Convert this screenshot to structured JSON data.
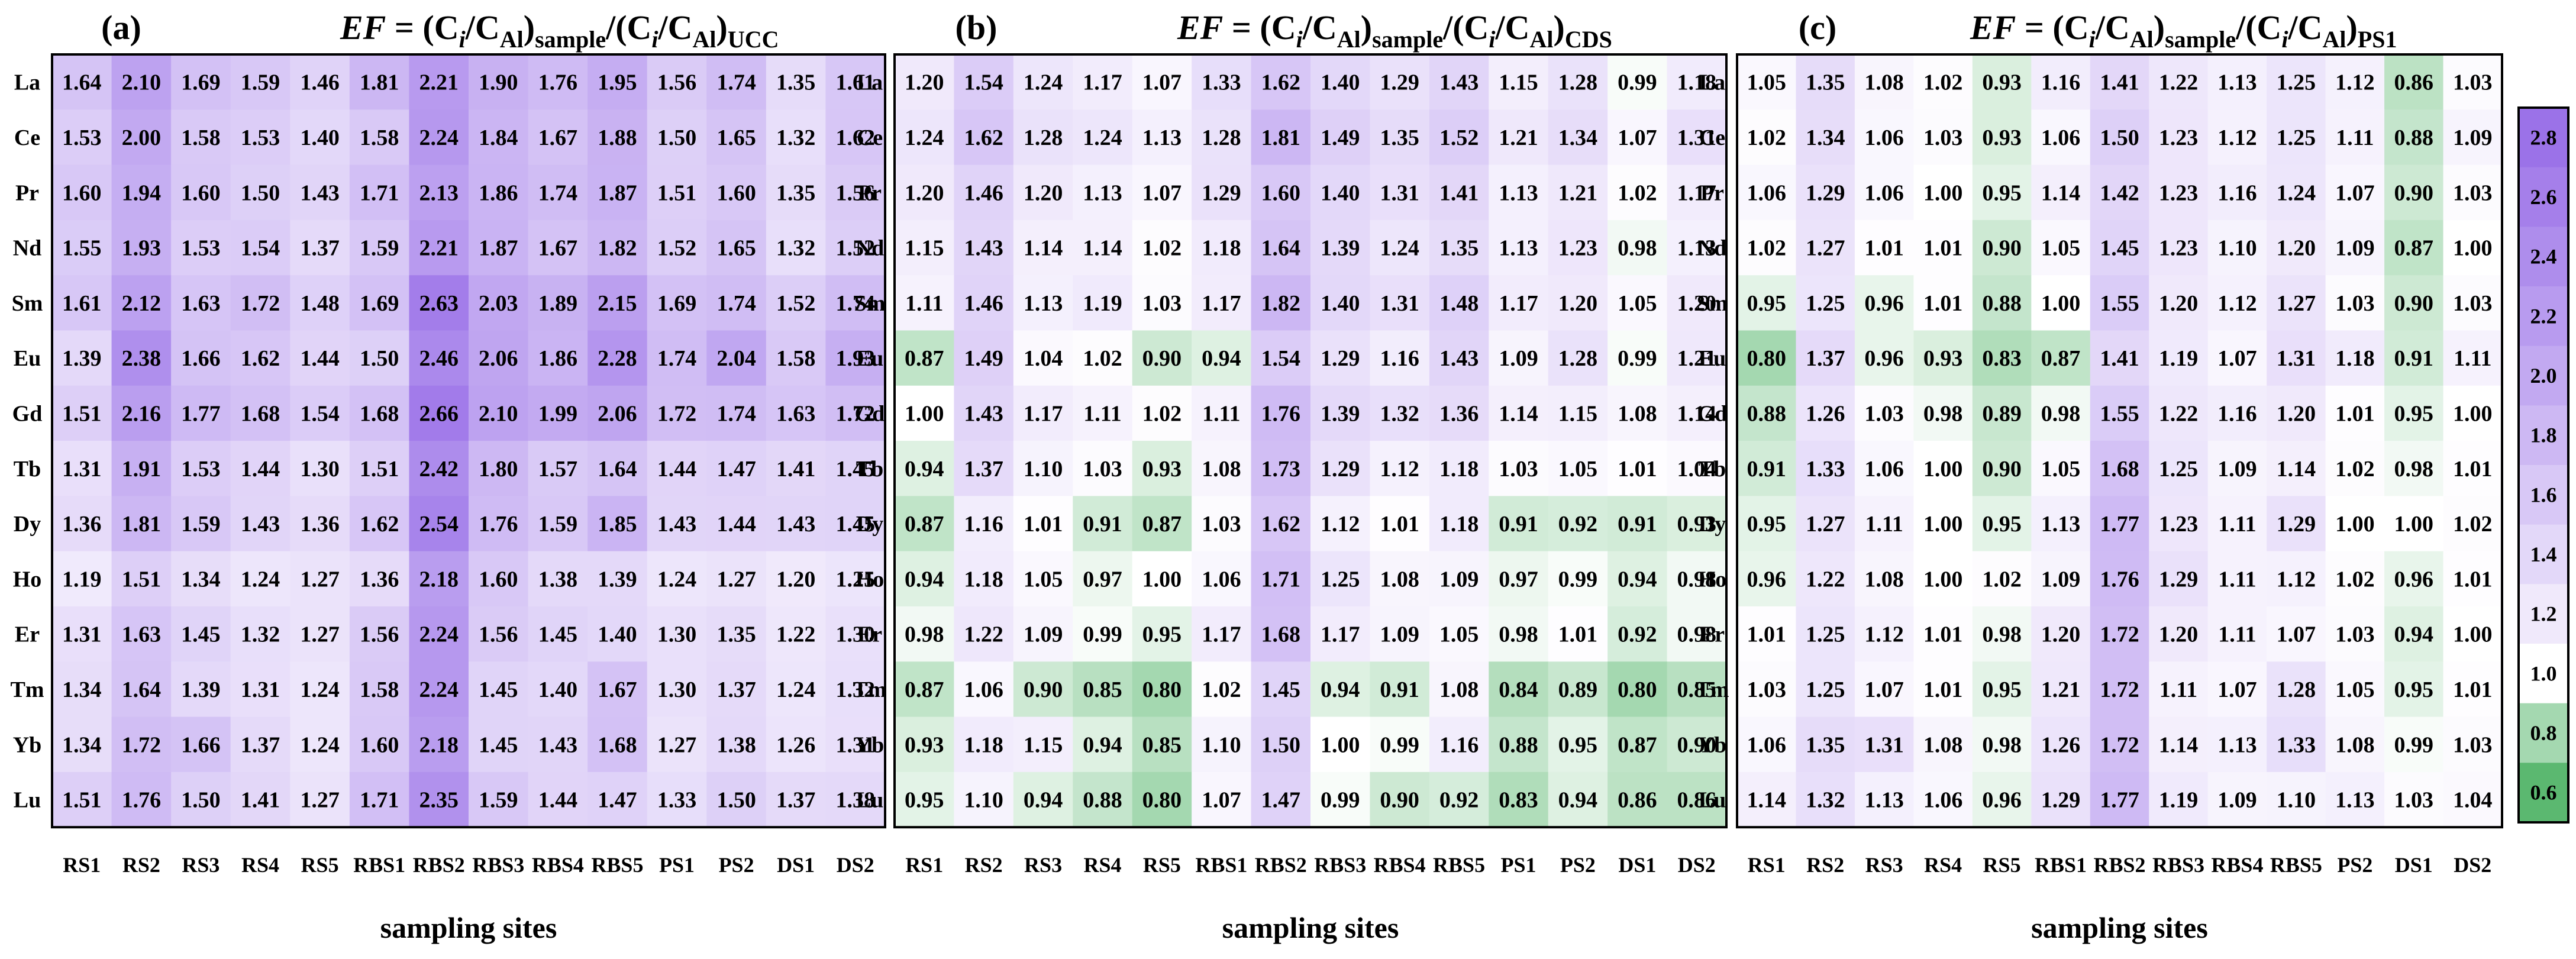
{
  "chart_data": [
    {
      "type": "heatmap",
      "panel_label": "(a)",
      "title": {
        "italic": "EF",
        "eq": " = (C",
        "s1": "i",
        "m1": "/C",
        "s2": "Al",
        "m2": ")",
        "s3": "sample",
        "m3": "/(C",
        "s4": "i",
        "m4": "/C",
        "s5": "Al",
        "m5": ")",
        "s6": "UCC"
      },
      "xlabel": "sampling sites",
      "columns": [
        "RS1",
        "RS2",
        "RS3",
        "RS4",
        "RS5",
        "RBS1",
        "RBS2",
        "RBS3",
        "RBS4",
        "RBS5",
        "PS1",
        "PS2",
        "DS1",
        "DS2"
      ],
      "rows": [
        "La",
        "Ce",
        "Pr",
        "Nd",
        "Sm",
        "Eu",
        "Gd",
        "Tb",
        "Dy",
        "Ho",
        "Er",
        "Tm",
        "Yb",
        "Lu"
      ],
      "values": [
        [
          "1.64",
          "2.10",
          "1.69",
          "1.59",
          "1.46",
          "1.81",
          "2.21",
          "1.90",
          "1.76",
          "1.95",
          "1.56",
          "1.74",
          "1.35",
          "1.61"
        ],
        [
          "1.53",
          "2.00",
          "1.58",
          "1.53",
          "1.40",
          "1.58",
          "2.24",
          "1.84",
          "1.67",
          "1.88",
          "1.50",
          "1.65",
          "1.32",
          "1.62"
        ],
        [
          "1.60",
          "1.94",
          "1.60",
          "1.50",
          "1.43",
          "1.71",
          "2.13",
          "1.86",
          "1.74",
          "1.87",
          "1.51",
          "1.60",
          "1.35",
          "1.56"
        ],
        [
          "1.55",
          "1.93",
          "1.53",
          "1.54",
          "1.37",
          "1.59",
          "2.21",
          "1.87",
          "1.67",
          "1.82",
          "1.52",
          "1.65",
          "1.32",
          "1.52"
        ],
        [
          "1.61",
          "2.12",
          "1.63",
          "1.72",
          "1.48",
          "1.69",
          "2.63",
          "2.03",
          "1.89",
          "2.15",
          "1.69",
          "1.74",
          "1.52",
          "1.74"
        ],
        [
          "1.39",
          "2.38",
          "1.66",
          "1.62",
          "1.44",
          "1.50",
          "2.46",
          "2.06",
          "1.86",
          "2.28",
          "1.74",
          "2.04",
          "1.58",
          "1.93"
        ],
        [
          "1.51",
          "2.16",
          "1.77",
          "1.68",
          "1.54",
          "1.68",
          "2.66",
          "2.10",
          "1.99",
          "2.06",
          "1.72",
          "1.74",
          "1.63",
          "1.72"
        ],
        [
          "1.31",
          "1.91",
          "1.53",
          "1.44",
          "1.30",
          "1.51",
          "2.42",
          "1.80",
          "1.57",
          "1.64",
          "1.44",
          "1.47",
          "1.41",
          "1.45"
        ],
        [
          "1.36",
          "1.81",
          "1.59",
          "1.43",
          "1.36",
          "1.62",
          "2.54",
          "1.76",
          "1.59",
          "1.85",
          "1.43",
          "1.44",
          "1.43",
          "1.45"
        ],
        [
          "1.19",
          "1.51",
          "1.34",
          "1.24",
          "1.27",
          "1.36",
          "2.18",
          "1.60",
          "1.38",
          "1.39",
          "1.24",
          "1.27",
          "1.20",
          "1.25"
        ],
        [
          "1.31",
          "1.63",
          "1.45",
          "1.32",
          "1.27",
          "1.56",
          "2.24",
          "1.56",
          "1.45",
          "1.40",
          "1.30",
          "1.35",
          "1.22",
          "1.30"
        ],
        [
          "1.34",
          "1.64",
          "1.39",
          "1.31",
          "1.24",
          "1.58",
          "2.24",
          "1.45",
          "1.40",
          "1.67",
          "1.30",
          "1.37",
          "1.24",
          "1.32"
        ],
        [
          "1.34",
          "1.72",
          "1.66",
          "1.37",
          "1.24",
          "1.60",
          "2.18",
          "1.45",
          "1.43",
          "1.68",
          "1.27",
          "1.38",
          "1.26",
          "1.31"
        ],
        [
          "1.51",
          "1.76",
          "1.50",
          "1.41",
          "1.27",
          "1.71",
          "2.35",
          "1.59",
          "1.44",
          "1.47",
          "1.33",
          "1.50",
          "1.37",
          "1.38"
        ]
      ]
    },
    {
      "type": "heatmap",
      "panel_label": "(b)",
      "title": {
        "italic": "EF",
        "eq": " = (C",
        "s1": "i",
        "m1": "/C",
        "s2": "Al",
        "m2": ")",
        "s3": "sample",
        "m3": "/(C",
        "s4": "i",
        "m4": "/C",
        "s5": "Al",
        "m5": ")",
        "s6": "CDS"
      },
      "xlabel": "sampling sites",
      "columns": [
        "RS1",
        "RS2",
        "RS3",
        "RS4",
        "RS5",
        "RBS1",
        "RBS2",
        "RBS3",
        "RBS4",
        "RBS5",
        "PS1",
        "PS2",
        "DS1",
        "DS2"
      ],
      "rows": [
        "La",
        "Ce",
        "Pr",
        "Nd",
        "Sm",
        "Eu",
        "Gd",
        "Tb",
        "Dy",
        "Ho",
        "Er",
        "Tm",
        "Yb",
        "Lu"
      ],
      "values": [
        [
          "1.20",
          "1.54",
          "1.24",
          "1.17",
          "1.07",
          "1.33",
          "1.62",
          "1.40",
          "1.29",
          "1.43",
          "1.15",
          "1.28",
          "0.99",
          "1.18"
        ],
        [
          "1.24",
          "1.62",
          "1.28",
          "1.24",
          "1.13",
          "1.28",
          "1.81",
          "1.49",
          "1.35",
          "1.52",
          "1.21",
          "1.34",
          "1.07",
          "1.31"
        ],
        [
          "1.20",
          "1.46",
          "1.20",
          "1.13",
          "1.07",
          "1.29",
          "1.60",
          "1.40",
          "1.31",
          "1.41",
          "1.13",
          "1.21",
          "1.02",
          "1.17"
        ],
        [
          "1.15",
          "1.43",
          "1.14",
          "1.14",
          "1.02",
          "1.18",
          "1.64",
          "1.39",
          "1.24",
          "1.35",
          "1.13",
          "1.23",
          "0.98",
          "1.13"
        ],
        [
          "1.11",
          "1.46",
          "1.13",
          "1.19",
          "1.03",
          "1.17",
          "1.82",
          "1.40",
          "1.31",
          "1.48",
          "1.17",
          "1.20",
          "1.05",
          "1.20"
        ],
        [
          "0.87",
          "1.49",
          "1.04",
          "1.02",
          "0.90",
          "0.94",
          "1.54",
          "1.29",
          "1.16",
          "1.43",
          "1.09",
          "1.28",
          "0.99",
          "1.21"
        ],
        [
          "1.00",
          "1.43",
          "1.17",
          "1.11",
          "1.02",
          "1.11",
          "1.76",
          "1.39",
          "1.32",
          "1.36",
          "1.14",
          "1.15",
          "1.08",
          "1.14"
        ],
        [
          "0.94",
          "1.37",
          "1.10",
          "1.03",
          "0.93",
          "1.08",
          "1.73",
          "1.29",
          "1.12",
          "1.18",
          "1.03",
          "1.05",
          "1.01",
          "1.04"
        ],
        [
          "0.87",
          "1.16",
          "1.01",
          "0.91",
          "0.87",
          "1.03",
          "1.62",
          "1.12",
          "1.01",
          "1.18",
          "0.91",
          "0.92",
          "0.91",
          "0.93"
        ],
        [
          "0.94",
          "1.18",
          "1.05",
          "0.97",
          "1.00",
          "1.06",
          "1.71",
          "1.25",
          "1.08",
          "1.09",
          "0.97",
          "0.99",
          "0.94",
          "0.98"
        ],
        [
          "0.98",
          "1.22",
          "1.09",
          "0.99",
          "0.95",
          "1.17",
          "1.68",
          "1.17",
          "1.09",
          "1.05",
          "0.98",
          "1.01",
          "0.92",
          "0.98"
        ],
        [
          "0.87",
          "1.06",
          "0.90",
          "0.85",
          "0.80",
          "1.02",
          "1.45",
          "0.94",
          "0.91",
          "1.08",
          "0.84",
          "0.89",
          "0.80",
          "0.85"
        ],
        [
          "0.93",
          "1.18",
          "1.15",
          "0.94",
          "0.85",
          "1.10",
          "1.50",
          "1.00",
          "0.99",
          "1.16",
          "0.88",
          "0.95",
          "0.87",
          "0.90"
        ],
        [
          "0.95",
          "1.10",
          "0.94",
          "0.88",
          "0.80",
          "1.07",
          "1.47",
          "0.99",
          "0.90",
          "0.92",
          "0.83",
          "0.94",
          "0.86",
          "0.86"
        ]
      ]
    },
    {
      "type": "heatmap",
      "panel_label": "(c)",
      "title": {
        "italic": "EF",
        "eq": " = (C",
        "s1": "i",
        "m1": "/C",
        "s2": "Al",
        "m2": ")",
        "s3": "sample",
        "m3": "/(C",
        "s4": "i",
        "m4": "/C",
        "s5": "Al",
        "m5": ")",
        "s6": "PS1"
      },
      "xlabel": "sampling sites",
      "columns": [
        "RS1",
        "RS2",
        "RS3",
        "RS4",
        "RS5",
        "RBS1",
        "RBS2",
        "RBS3",
        "RBS4",
        "RBS5",
        "PS2",
        "DS1",
        "DS2"
      ],
      "rows": [
        "La",
        "Ce",
        "Pr",
        "Nd",
        "Sm",
        "Eu",
        "Gd",
        "Tb",
        "Dy",
        "Ho",
        "Er",
        "Tm",
        "Yb",
        "Lu"
      ],
      "values": [
        [
          "1.05",
          "1.35",
          "1.08",
          "1.02",
          "0.93",
          "1.16",
          "1.41",
          "1.22",
          "1.13",
          "1.25",
          "1.12",
          "0.86",
          "1.03"
        ],
        [
          "1.02",
          "1.34",
          "1.06",
          "1.03",
          "0.93",
          "1.06",
          "1.50",
          "1.23",
          "1.12",
          "1.25",
          "1.11",
          "0.88",
          "1.09"
        ],
        [
          "1.06",
          "1.29",
          "1.06",
          "1.00",
          "0.95",
          "1.14",
          "1.42",
          "1.23",
          "1.16",
          "1.24",
          "1.07",
          "0.90",
          "1.03"
        ],
        [
          "1.02",
          "1.27",
          "1.01",
          "1.01",
          "0.90",
          "1.05",
          "1.45",
          "1.23",
          "1.10",
          "1.20",
          "1.09",
          "0.87",
          "1.00"
        ],
        [
          "0.95",
          "1.25",
          "0.96",
          "1.01",
          "0.88",
          "1.00",
          "1.55",
          "1.20",
          "1.12",
          "1.27",
          "1.03",
          "0.90",
          "1.03"
        ],
        [
          "0.80",
          "1.37",
          "0.96",
          "0.93",
          "0.83",
          "0.87",
          "1.41",
          "1.19",
          "1.07",
          "1.31",
          "1.18",
          "0.91",
          "1.11"
        ],
        [
          "0.88",
          "1.26",
          "1.03",
          "0.98",
          "0.89",
          "0.98",
          "1.55",
          "1.22",
          "1.16",
          "1.20",
          "1.01",
          "0.95",
          "1.00"
        ],
        [
          "0.91",
          "1.33",
          "1.06",
          "1.00",
          "0.90",
          "1.05",
          "1.68",
          "1.25",
          "1.09",
          "1.14",
          "1.02",
          "0.98",
          "1.01"
        ],
        [
          "0.95",
          "1.27",
          "1.11",
          "1.00",
          "0.95",
          "1.13",
          "1.77",
          "1.23",
          "1.11",
          "1.29",
          "1.00",
          "1.00",
          "1.02"
        ],
        [
          "0.96",
          "1.22",
          "1.08",
          "1.00",
          "1.02",
          "1.09",
          "1.76",
          "1.29",
          "1.11",
          "1.12",
          "1.02",
          "0.96",
          "1.01"
        ],
        [
          "1.01",
          "1.25",
          "1.12",
          "1.01",
          "0.98",
          "1.20",
          "1.72",
          "1.20",
          "1.11",
          "1.07",
          "1.03",
          "0.94",
          "1.00"
        ],
        [
          "1.03",
          "1.25",
          "1.07",
          "1.01",
          "0.95",
          "1.21",
          "1.72",
          "1.11",
          "1.07",
          "1.28",
          "1.05",
          "0.95",
          "1.01"
        ],
        [
          "1.06",
          "1.35",
          "1.31",
          "1.08",
          "0.98",
          "1.26",
          "1.72",
          "1.14",
          "1.13",
          "1.33",
          "1.08",
          "0.99",
          "1.03"
        ],
        [
          "1.14",
          "1.32",
          "1.13",
          "1.06",
          "0.96",
          "1.29",
          "1.77",
          "1.19",
          "1.09",
          "1.10",
          "1.13",
          "1.03",
          "1.04"
        ]
      ]
    }
  ],
  "colorbar": {
    "ticks": [
      "2.8",
      "2.6",
      "2.4",
      "2.2",
      "2.0",
      "1.8",
      "1.6",
      "1.4",
      "1.2",
      "1.0",
      "0.8",
      "0.6"
    ],
    "min": 0.6,
    "max": 2.8,
    "center": 1.0,
    "colors": {
      "low": "#5bb870",
      "mid": "#ffffff",
      "high": "#9b72e8"
    }
  }
}
